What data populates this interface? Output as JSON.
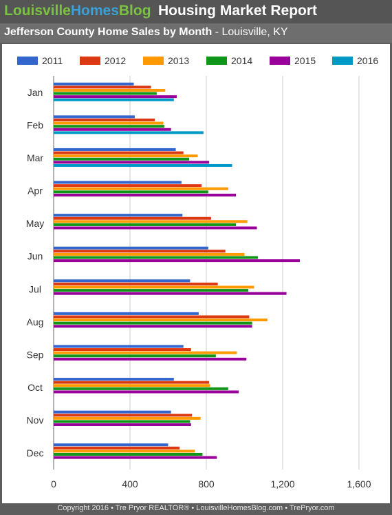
{
  "header": {
    "brand_part1": "Louisville",
    "brand_part2": "Homes",
    "brand_part3": "Blog",
    "report_title": "Housing Market Report",
    "subtitle_bold": "Jefferson County Home Sales by Month",
    "subtitle_rest": " - Louisville, KY"
  },
  "footer": "Copyright 2016 • Tre Pryor REALTOR® • LouisvilleHomesBlog.com • TrePryor.com",
  "chart_data": {
    "type": "bar",
    "orientation": "horizontal",
    "categories": [
      "Jan",
      "Feb",
      "Mar",
      "Apr",
      "May",
      "Jun",
      "Jul",
      "Aug",
      "Sep",
      "Oct",
      "Nov",
      "Dec"
    ],
    "series": [
      {
        "name": "2011",
        "color": "#3366cc",
        "values": [
          420,
          425,
          640,
          670,
          675,
          810,
          715,
          760,
          680,
          630,
          615,
          600
        ]
      },
      {
        "name": "2012",
        "color": "#dc3912",
        "values": [
          510,
          530,
          680,
          775,
          825,
          900,
          860,
          1025,
          720,
          815,
          725,
          660
        ]
      },
      {
        "name": "2013",
        "color": "#ff9900",
        "values": [
          585,
          575,
          755,
          915,
          1015,
          1000,
          1050,
          1120,
          960,
          820,
          770,
          740
        ]
      },
      {
        "name": "2014",
        "color": "#109618",
        "values": [
          540,
          580,
          710,
          810,
          955,
          1070,
          1020,
          1040,
          850,
          915,
          715,
          780
        ]
      },
      {
        "name": "2015",
        "color": "#990099",
        "values": [
          645,
          615,
          815,
          955,
          1065,
          1290,
          1220,
          1040,
          1010,
          970,
          720,
          855
        ]
      },
      {
        "name": "2016",
        "color": "#0099c6",
        "values": [
          630,
          785,
          935,
          null,
          null,
          null,
          null,
          null,
          null,
          null,
          null,
          null
        ]
      }
    ],
    "xlim": [
      0,
      1700
    ],
    "xticks": [
      "0",
      "400",
      "800",
      "1,200",
      "1,600"
    ],
    "xtick_values": [
      0,
      400,
      800,
      1200,
      1600
    ],
    "grid": true,
    "legend_position": "top"
  }
}
